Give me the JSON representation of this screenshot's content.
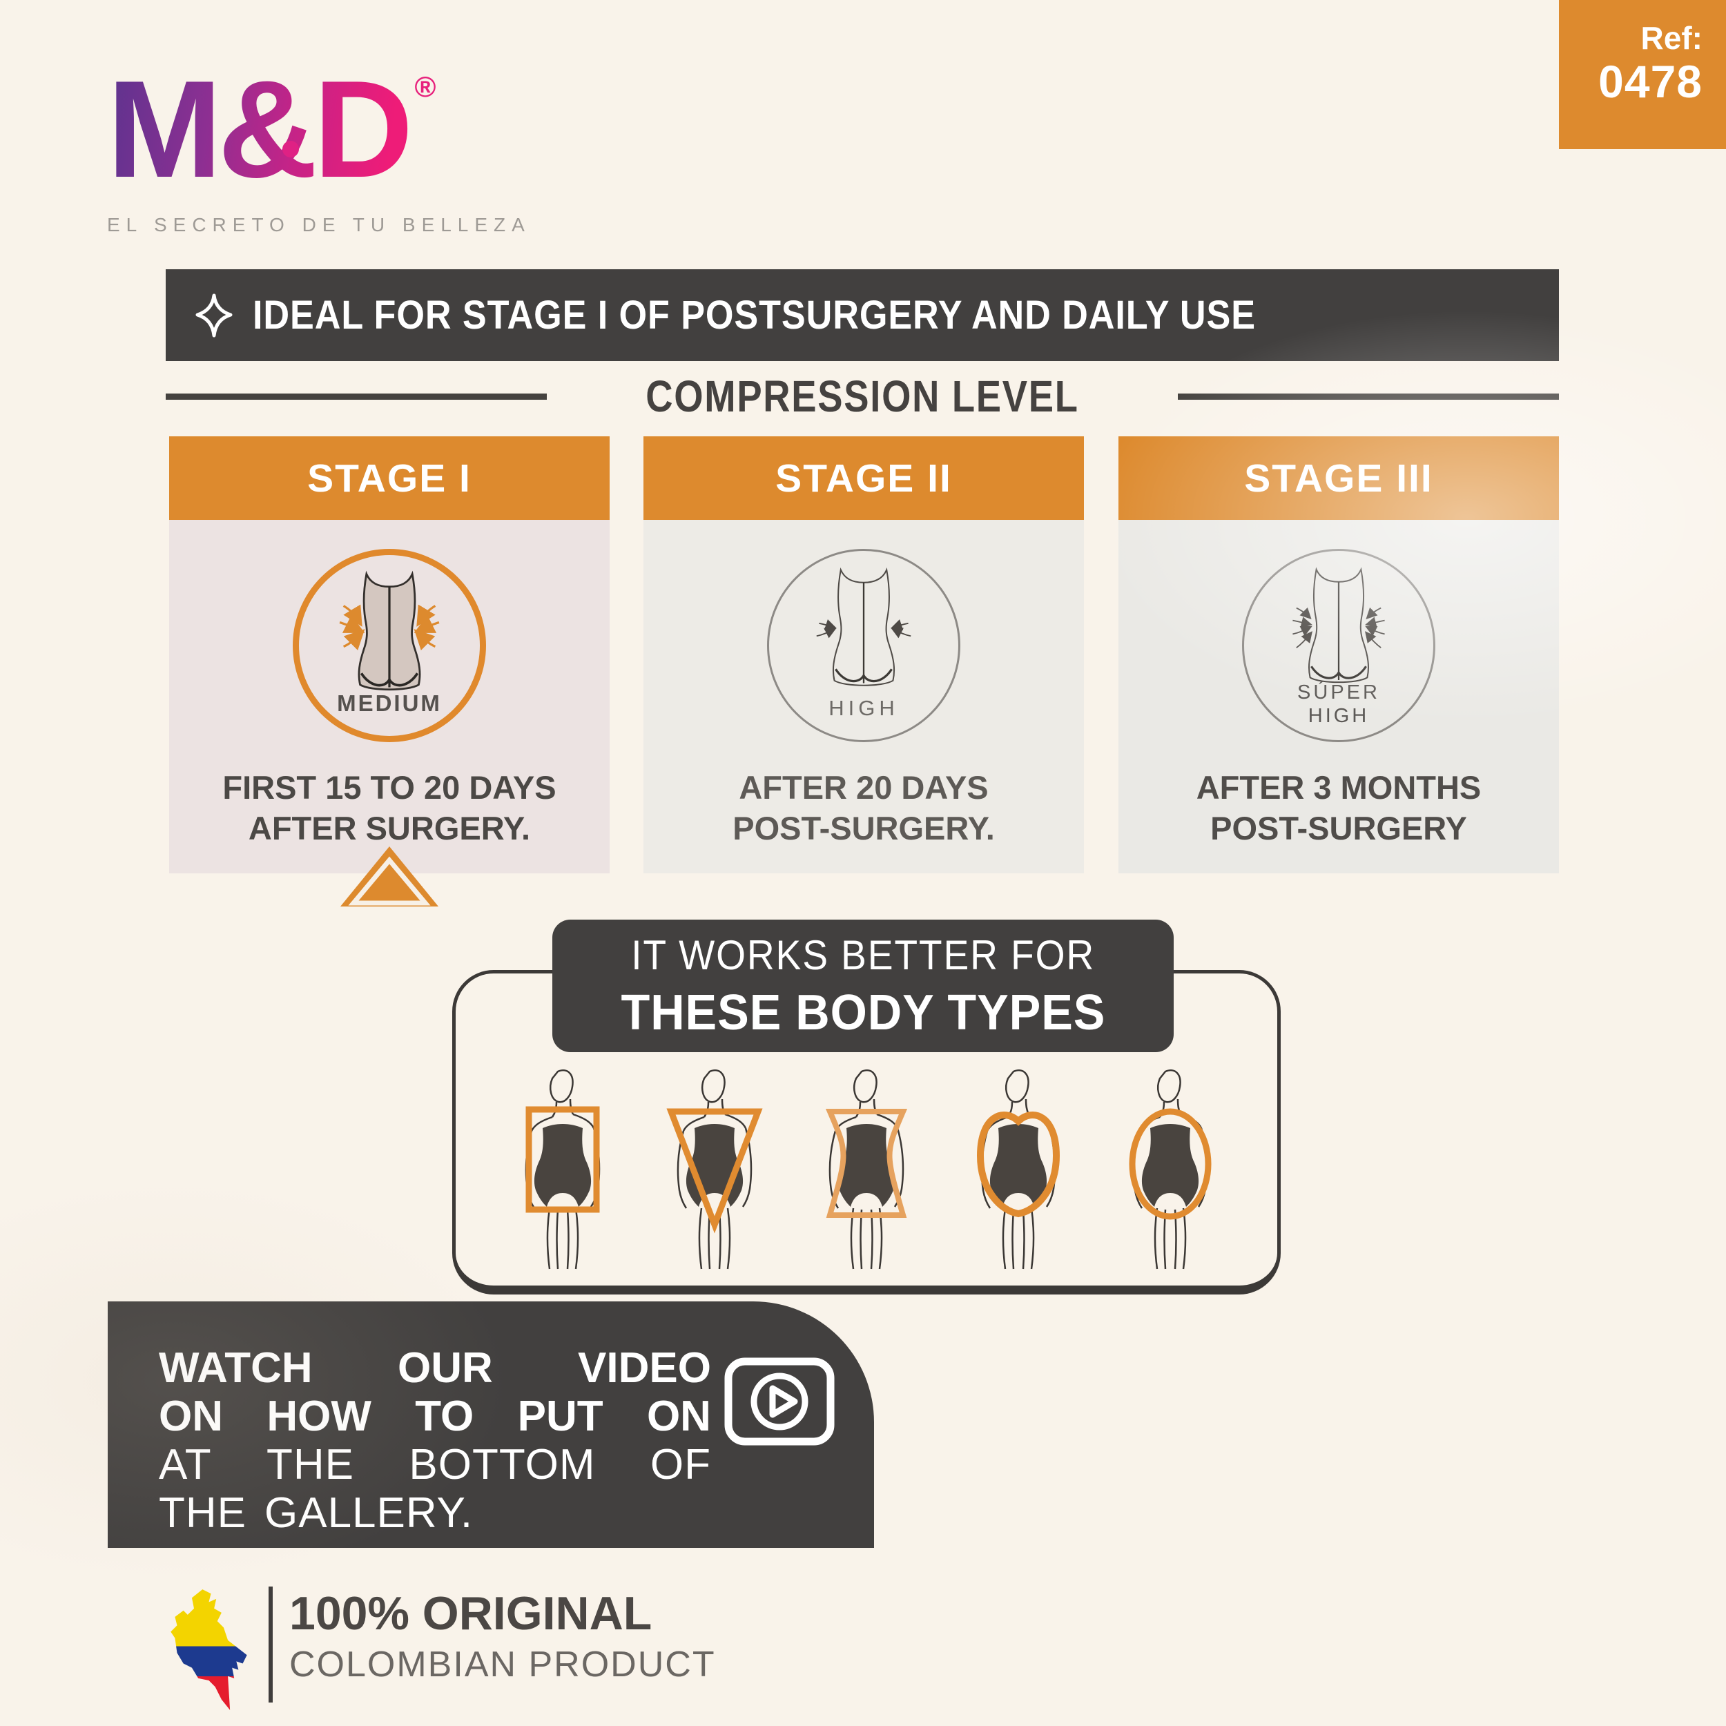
{
  "brand": {
    "logo_text": "M&D",
    "registered": "®",
    "tagline": "EL SECRETO DE TU BELLEZA"
  },
  "ref": {
    "label": "Ref:",
    "number": "0478"
  },
  "banner": {
    "text": "IDEAL FOR STAGE I OF POSTSURGERY AND DAILY USE"
  },
  "compression": {
    "title": "COMPRESSION LEVEL"
  },
  "stages": [
    {
      "title": "STAGE I",
      "levels": [
        "MEDIUM"
      ],
      "caption_lines": [
        "FIRST 15 TO 20 DAYS",
        "AFTER SURGERY."
      ],
      "highlighted": true
    },
    {
      "title": "STAGE II",
      "levels": [
        "HIGH"
      ],
      "caption_lines": [
        "AFTER 20 DAYS",
        "POST-SURGERY."
      ],
      "highlighted": false
    },
    {
      "title": "STAGE III",
      "levels": [
        "SÚPER",
        "HIGH"
      ],
      "caption_lines": [
        "AFTER 3 MONTHS",
        "POST-SURGERY"
      ],
      "highlighted": false
    }
  ],
  "body_types": {
    "heading_line1": "IT WORKS BETTER FOR",
    "heading_line2": "THESE BODY TYPES",
    "shapes": [
      "rectangle",
      "inverted-triangle",
      "hourglass",
      "round",
      "oval"
    ]
  },
  "video": {
    "line1": "WATCH OUR VIDEO",
    "line2": "ON HOW TO PUT ON",
    "line3": "AT THE BOTTOM OF",
    "line4": "THE GALLERY.",
    "icon": "play-video-icon"
  },
  "origin": {
    "title": "100% ORIGINAL",
    "subtitle": "COLOMBIAN PRODUCT",
    "icon": "colombia-map-icon"
  },
  "colors": {
    "background": "#f9f3ea",
    "orange": "#dd8a2e",
    "dark_gray": "#42403f",
    "stage1_body_bg": "#ece3e2",
    "stage2_body_bg": "#edebe6",
    "stage3_body_bg": "#eae9e5",
    "garment_beige": "#d4c7c0",
    "logo_purple": "#63338f",
    "logo_pink": "#ee1c78",
    "flag_yellow": "#f3d400",
    "flag_blue": "#1d3a8f",
    "flag_red": "#e51c2d"
  }
}
